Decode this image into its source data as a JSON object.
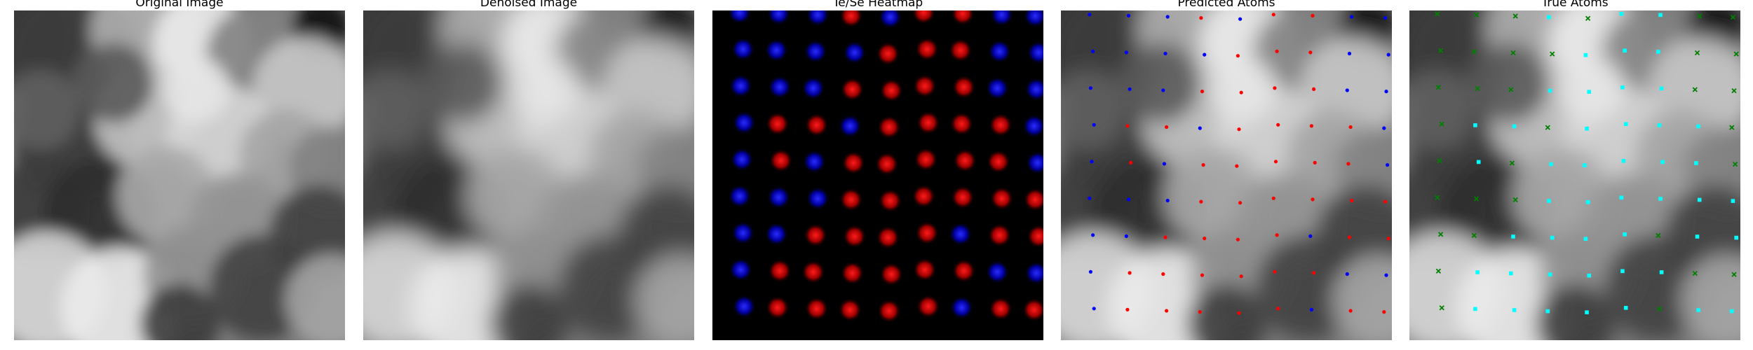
{
  "panels": [
    {
      "key": "original",
      "title": "Original Image",
      "icon": "grayscale-image"
    },
    {
      "key": "denoised",
      "title": "Denoised Image",
      "icon": "grayscale-image"
    },
    {
      "key": "heatmap",
      "title": "Te/Se Heatmap",
      "icon": "heatmap-image"
    },
    {
      "key": "predicted",
      "title": "Predicted Atoms",
      "icon": "atom-markers"
    },
    {
      "key": "true",
      "title": "True Atoms",
      "icon": "atom-markers"
    }
  ],
  "colors": {
    "background": "#ffffff",
    "heatmap_background": "#000000",
    "predicted_te": "#ff0000",
    "predicted_se": "#0000ff",
    "true_te": "#00ffff",
    "true_se": "#008000"
  }
}
